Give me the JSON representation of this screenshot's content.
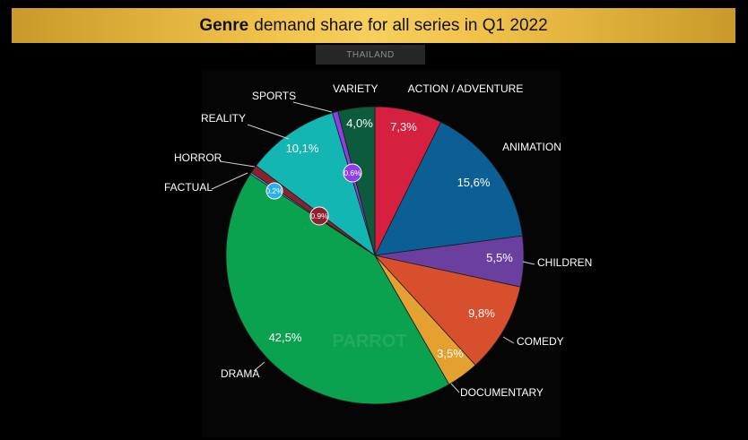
{
  "title": {
    "bold": "Genre",
    "rest": "demand share for all series in Q1 2022"
  },
  "region": "THAILAND",
  "watermark": "PARROT",
  "chart_data": {
    "type": "pie",
    "title": "Genre demand share for all series in Q1 2022",
    "subtitle": "THAILAND",
    "start": "12 o'clock",
    "direction": "clockwise",
    "slices": [
      {
        "label": "ACTION / ADVENTURE",
        "value": 7.3,
        "value_label": "7,3%",
        "color": "#d6203f"
      },
      {
        "label": "ANIMATION",
        "value": 15.6,
        "value_label": "15,6%",
        "color": "#0c5f95"
      },
      {
        "label": "CHILDREN",
        "value": 5.5,
        "value_label": "5,5%",
        "color": "#6b3fa0"
      },
      {
        "label": "COMEDY",
        "value": 9.8,
        "value_label": "9,8%",
        "color": "#d84f2e"
      },
      {
        "label": "DOCUMENTARY",
        "value": 3.5,
        "value_label": "3,5%",
        "color": "#e4a130"
      },
      {
        "label": "DRAMA",
        "value": 42.5,
        "value_label": "42,5%",
        "color": "#0aa24f"
      },
      {
        "label": "FACTUAL",
        "value": 0.2,
        "value_label": "0.2%",
        "color": "#2ab1e3"
      },
      {
        "label": "HORROR",
        "value": 0.9,
        "value_label": "0.9%",
        "color": "#8e2130"
      },
      {
        "label": "REALITY",
        "value": 10.1,
        "value_label": "10,1%",
        "color": "#14b6b4"
      },
      {
        "label": "SPORTS",
        "value": 0.6,
        "value_label": "0.6%",
        "color": "#8e3ee6"
      },
      {
        "label": "VARIETY",
        "value": 4.0,
        "value_label": "4,0%",
        "color": "#0c5b3c"
      }
    ]
  }
}
